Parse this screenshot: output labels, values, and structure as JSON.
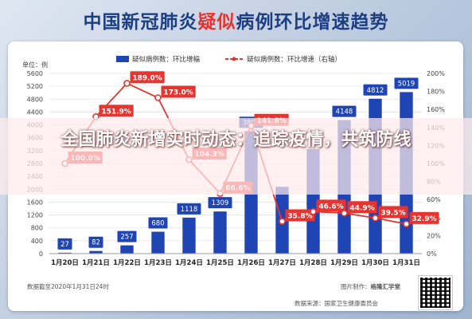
{
  "page": {
    "title_prefix": "中国新冠肺炎",
    "title_highlight": "疑似",
    "title_suffix": "病例环比增速趋势",
    "banner": "全国肺炎新增实时动态：追踪疫情，共筑防线",
    "left_unit": "单位：例",
    "footer_note": "数据截至2020年1月31日24时",
    "footer_source": "数据来源：国家卫生健康委员会",
    "footer_producer_label": "图片制作：",
    "footer_producer": "格隆汇学堂"
  },
  "chart_data": {
    "type": "bar",
    "categories": [
      "1月20日",
      "1月21日",
      "1月22日",
      "1月23日",
      "1月24日",
      "1月25日",
      "1月26日",
      "1月27日",
      "1月28日",
      "1月29日",
      "1月30日",
      "1月31日"
    ],
    "series": [
      {
        "name": "疑似病例数：环比增幅",
        "type": "bar",
        "axis": "left",
        "color": "#1f45b5",
        "values": [
          27,
          82,
          257,
          680,
          1118,
          1309,
          3806,
          2077,
          3248,
          4148,
          4812,
          5019
        ],
        "labels": [
          "27",
          "82",
          "257",
          "680",
          "1118",
          "1309",
          "3806",
          "",
          "",
          "4148",
          "4812",
          "5019"
        ]
      },
      {
        "name": "疑似病例数：环比增速（右轴）",
        "type": "line",
        "axis": "right",
        "color": "#e8342f",
        "values": [
          100.0,
          151.9,
          189.0,
          173.0,
          104.3,
          66.6,
          141.8,
          35.8,
          46.6,
          44.9,
          39.5,
          32.9
        ],
        "labels": [
          "100.0%",
          "151.9%",
          "189.0%",
          "173.0%",
          "104.3%",
          "66.6%",
          "141.8%",
          "35.8%",
          "46.6%",
          "44.9%",
          "39.5%",
          "32.9%"
        ]
      }
    ],
    "y_left": {
      "min": 0,
      "max": 5600,
      "ticks": [
        0,
        400,
        800,
        1200,
        1600,
        2000,
        2400,
        2800,
        3200,
        3600,
        4000,
        4400,
        4800,
        5200,
        5600
      ]
    },
    "y_right": {
      "min": 0,
      "max": 200,
      "ticks": [
        "0%",
        "20%",
        "40%",
        "60%",
        "80%",
        "100%",
        "120%",
        "140%",
        "160%",
        "180%",
        "200%"
      ]
    },
    "grid": true,
    "legend": "top"
  }
}
